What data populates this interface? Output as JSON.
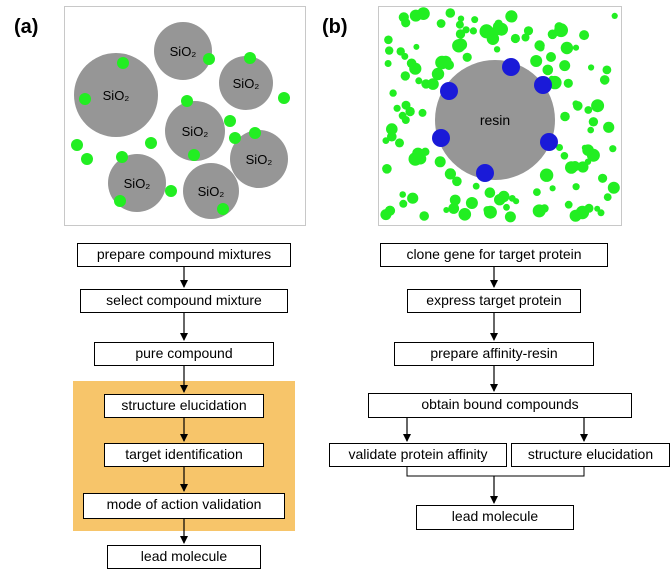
{
  "panel_a": {
    "label": "(a)",
    "particle_label": "SiO₂",
    "steps": [
      "prepare compound mixtures",
      "select compound mixture",
      "pure compound",
      "structure elucidation",
      "target identification",
      "mode of action validation",
      "lead molecule"
    ]
  },
  "panel_b": {
    "label": "(b)",
    "resin_label": "resin",
    "steps": [
      "clone gene for target protein",
      "express target protein",
      "prepare affinity-resin",
      "obtain bound compounds",
      "validate protein affinity",
      "structure elucidation",
      "lead molecule"
    ]
  },
  "colors": {
    "particle": "#969696",
    "compound": "#22ee22",
    "protein": "#1a1ad8",
    "highlight": "#f7c56a"
  }
}
